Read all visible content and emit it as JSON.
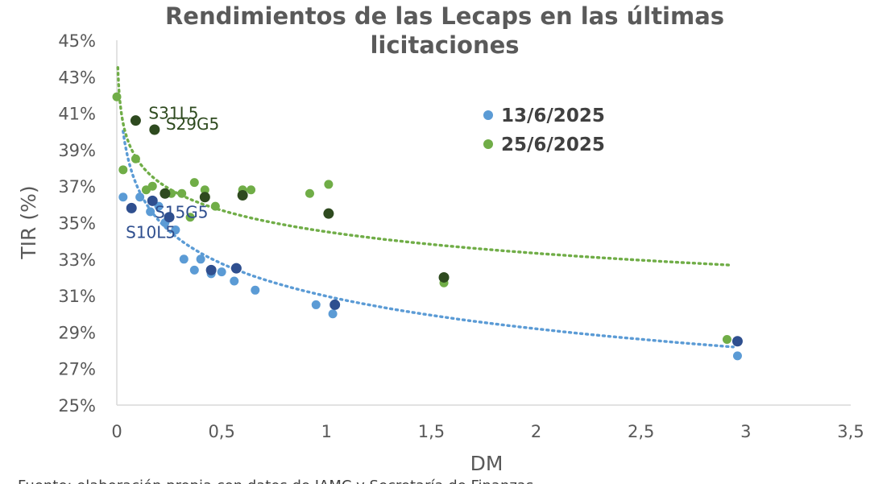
{
  "chart_data": {
    "type": "scatter",
    "title_lines": [
      "Rendimientos de las Lecaps en las últimas",
      "licitaciones"
    ],
    "xlabel": "DM",
    "ylabel": "TIR (%)",
    "xlim": [
      0,
      3.5
    ],
    "ylim": [
      25,
      45
    ],
    "x_ticks": [
      0,
      0.5,
      1,
      1.5,
      2,
      2.5,
      3,
      3.5
    ],
    "x_tick_labels": [
      "0",
      "0,5",
      "1",
      "1,5",
      "2",
      "2,5",
      "3",
      "3,5"
    ],
    "y_ticks": [
      25,
      27,
      29,
      31,
      33,
      35,
      37,
      39,
      41,
      43,
      45
    ],
    "y_tick_labels": [
      "25%",
      "27%",
      "29%",
      "31%",
      "33%",
      "35%",
      "37%",
      "39%",
      "41%",
      "43%",
      "45%"
    ],
    "grid": false,
    "legend_position": "top-right",
    "colors": {
      "series_13": "#5b9bd5",
      "series_13_highlight": "#2f4f8f",
      "series_25": "#70ad47",
      "series_25_highlight": "#2e4a1f"
    },
    "series": [
      {
        "name": "13/6/2025",
        "color": "#5b9bd5",
        "points": [
          [
            0.03,
            36.4
          ],
          [
            0.11,
            36.4
          ],
          [
            0.16,
            35.6
          ],
          [
            0.2,
            35.9
          ],
          [
            0.23,
            35.0
          ],
          [
            0.28,
            34.6
          ],
          [
            0.32,
            33.0
          ],
          [
            0.37,
            32.4
          ],
          [
            0.4,
            33.0
          ],
          [
            0.45,
            32.2
          ],
          [
            0.5,
            32.3
          ],
          [
            0.56,
            31.8
          ],
          [
            0.66,
            31.3
          ],
          [
            0.95,
            30.5
          ],
          [
            1.03,
            30.0
          ],
          [
            2.96,
            27.7
          ]
        ],
        "trend": {
          "type": "log",
          "a": 30.97,
          "b": -2.58,
          "x_from": 0.03,
          "x_to": 2.94
        }
      },
      {
        "name": "25/6/2025",
        "color": "#70ad47",
        "points": [
          [
            0.0,
            41.9
          ],
          [
            0.03,
            37.9
          ],
          [
            0.09,
            38.5
          ],
          [
            0.14,
            36.8
          ],
          [
            0.17,
            37.0
          ],
          [
            0.26,
            36.6
          ],
          [
            0.31,
            36.6
          ],
          [
            0.35,
            35.3
          ],
          [
            0.37,
            37.2
          ],
          [
            0.42,
            36.8
          ],
          [
            0.47,
            35.9
          ],
          [
            0.6,
            36.8
          ],
          [
            0.64,
            36.8
          ],
          [
            0.92,
            36.6
          ],
          [
            1.01,
            37.1
          ],
          [
            1.56,
            31.7
          ],
          [
            2.91,
            28.6
          ]
        ],
        "trend": {
          "type": "log",
          "a": 34.5,
          "b": -1.7,
          "x_from": 0.005,
          "x_to": 2.92
        }
      }
    ],
    "highlighted": [
      {
        "label": "S31L5",
        "x": 0.09,
        "y": 40.6,
        "series": "25/6/2025"
      },
      {
        "label": "S29G5",
        "x": 0.18,
        "y": 40.1,
        "series": "25/6/2025"
      },
      {
        "label": "",
        "x": 0.23,
        "y": 36.6,
        "series": "25/6/2025"
      },
      {
        "label": "",
        "x": 0.42,
        "y": 36.4,
        "series": "25/6/2025"
      },
      {
        "label": "",
        "x": 0.6,
        "y": 36.5,
        "series": "25/6/2025"
      },
      {
        "label": "",
        "x": 1.01,
        "y": 35.5,
        "series": "25/6/2025"
      },
      {
        "label": "",
        "x": 1.56,
        "y": 32.0,
        "series": "25/6/2025"
      },
      {
        "label": "",
        "x": 0.07,
        "y": 35.8,
        "series": "13/6/2025"
      },
      {
        "label": "",
        "x": 0.17,
        "y": 36.2,
        "series": "13/6/2025"
      },
      {
        "label": "S15G5",
        "x": 0.25,
        "y": 35.3,
        "series": "13/6/2025"
      },
      {
        "label": "S10L5",
        "x": 0.45,
        "y": 32.4,
        "series": "13/6/2025"
      },
      {
        "label": "",
        "x": 0.57,
        "y": 32.5,
        "series": "13/6/2025"
      },
      {
        "label": "",
        "x": 1.04,
        "y": 30.5,
        "series": "13/6/2025"
      },
      {
        "label": "",
        "x": 2.96,
        "y": 28.5,
        "series": "13/6/2025"
      }
    ]
  },
  "source_note": "Fuente: elaboración propia con datos de IAMC y Secretaría de Finanzas"
}
